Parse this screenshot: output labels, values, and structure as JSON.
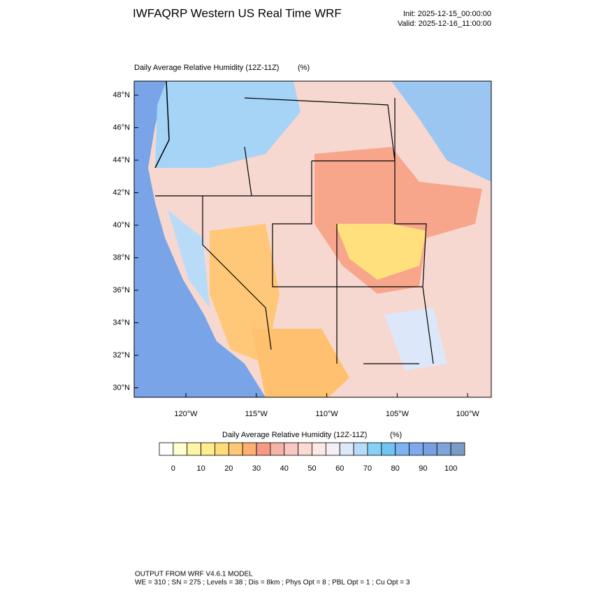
{
  "header": {
    "title": "IWFAQRP Western US Real Time WRF",
    "init": "Init: 2025-12-15_00:00:00",
    "valid": "Valid: 2025-12-16_11:00:00"
  },
  "map": {
    "title": "Daily Average Relative Humidity (12Z-11Z)",
    "units": "(%)",
    "lat_labels": [
      "48°N",
      "46°N",
      "44°N",
      "42°N",
      "40°N",
      "38°N",
      "36°N",
      "34°N",
      "32°N",
      "30°N"
    ],
    "lon_labels": [
      "120°W",
      "115°W",
      "110°W",
      "105°W",
      "100°W"
    ]
  },
  "colorbar": {
    "title": "Daily Average Relative Humidity (12Z-11Z)",
    "units": "(%)",
    "colors": [
      "#ffffff",
      "#ffffd0",
      "#fff5a8",
      "#ffec8c",
      "#ffdc7a",
      "#ffc878",
      "#ffb070",
      "#f59a84",
      "#f4b4a8",
      "#f8c8c0",
      "#fadad2",
      "#fce8e4",
      "#f4f0f8",
      "#dce8fa",
      "#b8dcf8",
      "#88d0f8",
      "#70c4f4",
      "#7cb4f0",
      "#80a8ec",
      "#78a0e0",
      "#7ea4d8",
      "#7c9cc8"
    ],
    "labels": [
      0,
      10,
      20,
      30,
      40,
      50,
      60,
      70,
      80,
      90,
      100
    ]
  },
  "footer": {
    "line1": "OUTPUT FROM WRF V4.6.1 MODEL",
    "line2": "WE = 310 ; SN = 275 ; Levels = 38 ; Dis = 8km ; Phys Opt = 8 ; PBL Opt = 1 ; Cu Opt = 3"
  }
}
